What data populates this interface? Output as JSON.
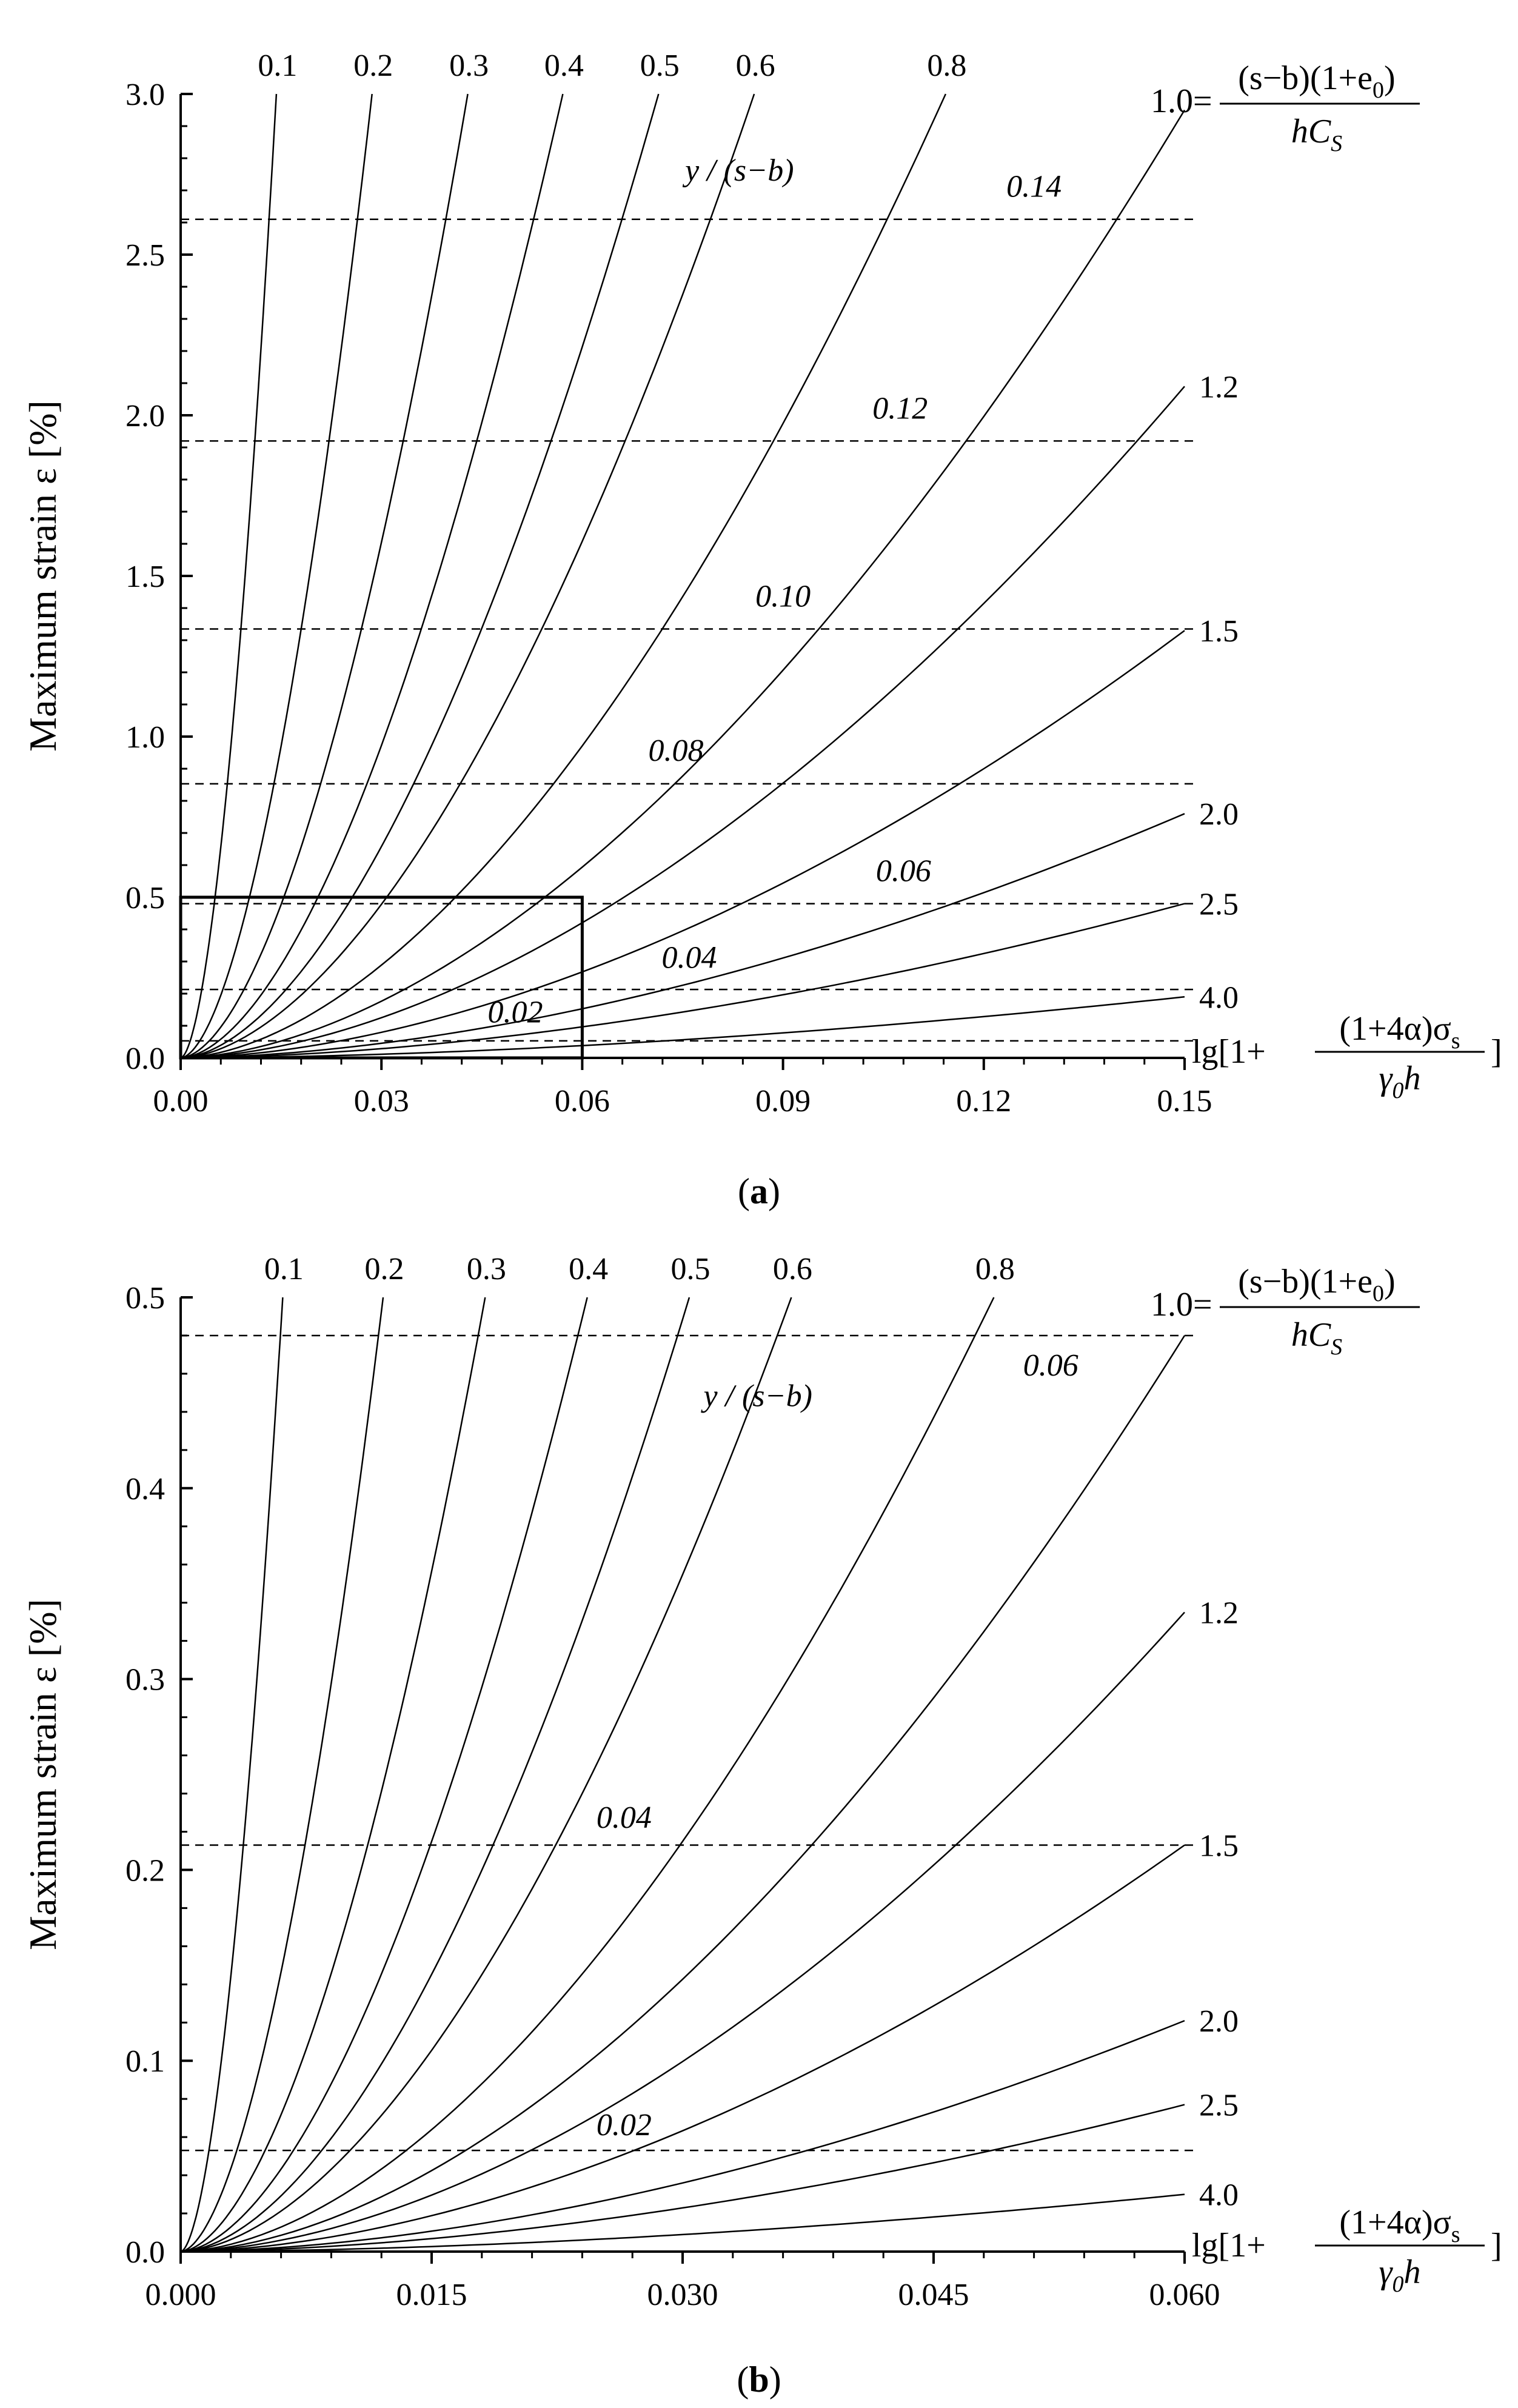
{
  "chart_data": [
    {
      "id": "a",
      "type": "line",
      "panel_label": "a",
      "xlim": [
        0,
        0.15
      ],
      "ylim": [
        0,
        3.0
      ],
      "xticks": [
        "0.00",
        "0.03",
        "0.06",
        "0.09",
        "0.12",
        "0.15"
      ],
      "xtick_values": [
        0,
        0.03,
        0.06,
        0.09,
        0.12,
        0.15
      ],
      "yticks": [
        "0.0",
        "0.5",
        "1.0",
        "1.5",
        "2.0",
        "2.5",
        "3.0"
      ],
      "ytick_values": [
        0,
        0.5,
        1.0,
        1.5,
        2.0,
        2.5,
        3.0
      ],
      "ylabel": "Maximum strain ε [%]",
      "xlabel": {
        "prefix": "lg[1+",
        "numerator": "(1+4α)σ",
        "numerator_sub": "s",
        "denominator": "γ",
        "denominator_sub": "0",
        "denominator_tail": "h",
        "suffix": "]"
      },
      "param_label": {
        "value": "1.0",
        "eq": "=",
        "numerator": "(s−b)(1+e",
        "numerator_sub": "0",
        "numerator_tail": ")",
        "denominator": "hC",
        "denominator_sub": "S"
      },
      "dashed_header": "y / (s−b)",
      "series": [
        {
          "name": "0.1",
          "top_x": 0.0143,
          "label": "0.1"
        },
        {
          "name": "0.2",
          "top_x": 0.0286,
          "label": "0.2"
        },
        {
          "name": "0.3",
          "top_x": 0.0429,
          "label": "0.3"
        },
        {
          "name": "0.4",
          "top_x": 0.0571,
          "label": "0.4"
        },
        {
          "name": "0.5",
          "top_x": 0.0714,
          "label": "0.5"
        },
        {
          "name": "0.6",
          "top_x": 0.0857,
          "label": "0.6"
        },
        {
          "name": "0.8",
          "top_x": 0.1143,
          "label": "0.8"
        },
        {
          "name": "1.0",
          "end_y": 2.95,
          "label": ""
        },
        {
          "name": "1.2",
          "end_y": 2.09,
          "label": "1.2"
        },
        {
          "name": "1.5",
          "end_y": 1.33,
          "label": "1.5"
        },
        {
          "name": "2.0",
          "end_y": 0.76,
          "label": "2.0"
        },
        {
          "name": "2.5",
          "end_y": 0.48,
          "label": "2.5"
        },
        {
          "name": "4.0",
          "end_y": 0.19,
          "label": "4.0"
        }
      ],
      "dashed_lines": [
        {
          "y": 2.61,
          "label": "0.14",
          "label_x": 0.1275,
          "label_y": 2.68
        },
        {
          "y": 1.92,
          "label": "0.12",
          "label_x": 0.1075,
          "label_y": 1.99
        },
        {
          "y": 1.335,
          "label": "0.10",
          "label_x": 0.09,
          "label_y": 1.405
        },
        {
          "y": 0.853,
          "label": "0.08",
          "label_x": 0.074,
          "label_y": 0.925
        },
        {
          "y": 0.48,
          "label": "0.06",
          "label_x": 0.108,
          "label_y": 0.55
        },
        {
          "y": 0.213,
          "label": "0.04",
          "label_x": 0.076,
          "label_y": 0.28
        },
        {
          "y": 0.053,
          "label": "0.02",
          "label_x": 0.05,
          "label_y": 0.11
        }
      ],
      "inset_box": {
        "x0": 0,
        "x1": 0.06,
        "y0": 0,
        "y1": 0.5
      }
    },
    {
      "id": "b",
      "type": "line",
      "panel_label": "b",
      "xlim": [
        0,
        0.06
      ],
      "ylim": [
        0,
        0.5
      ],
      "xticks": [
        "0.000",
        "0.015",
        "0.030",
        "0.045",
        "0.060"
      ],
      "xtick_values": [
        0,
        0.015,
        0.03,
        0.045,
        0.06
      ],
      "yticks": [
        "0.0",
        "0.1",
        "0.2",
        "0.3",
        "0.4",
        "0.5"
      ],
      "ytick_values": [
        0,
        0.1,
        0.2,
        0.3,
        0.4,
        0.5
      ],
      "ylabel": "Maximum strain ε [%]",
      "xlabel": {
        "prefix": "lg[1+",
        "numerator": "(1+4α)σ",
        "numerator_sub": "s",
        "denominator": "γ",
        "denominator_sub": "0",
        "denominator_tail": "h",
        "suffix": "]"
      },
      "param_label": {
        "value": "1.0",
        "eq": "=",
        "numerator": "(s−b)(1+e",
        "numerator_sub": "0",
        "numerator_tail": ")",
        "denominator": "hC",
        "denominator_sub": "S"
      },
      "dashed_header": "y / (s−b)",
      "series": [
        {
          "name": "0.1",
          "top_x": 0.0061,
          "label": "0.1"
        },
        {
          "name": "0.2",
          "top_x": 0.0121,
          "label": "0.2"
        },
        {
          "name": "0.3",
          "top_x": 0.0182,
          "label": "0.3"
        },
        {
          "name": "0.4",
          "top_x": 0.0243,
          "label": "0.4"
        },
        {
          "name": "0.5",
          "top_x": 0.0304,
          "label": "0.5"
        },
        {
          "name": "0.6",
          "top_x": 0.0365,
          "label": "0.6"
        },
        {
          "name": "0.8",
          "top_x": 0.0486,
          "label": "0.8"
        },
        {
          "name": "1.0",
          "end_y": 0.48,
          "label": ""
        },
        {
          "name": "1.2",
          "end_y": 0.335,
          "label": "1.2"
        },
        {
          "name": "1.5",
          "end_y": 0.213,
          "label": "1.5"
        },
        {
          "name": "2.0",
          "end_y": 0.121,
          "label": "2.0"
        },
        {
          "name": "2.5",
          "end_y": 0.077,
          "label": "2.5"
        },
        {
          "name": "4.0",
          "end_y": 0.03,
          "label": "4.0"
        }
      ],
      "dashed_lines": [
        {
          "y": 0.48,
          "label": "0.06",
          "label_x": 0.052,
          "label_y": 0.459
        },
        {
          "y": 0.213,
          "label": "0.04",
          "label_x": 0.0265,
          "label_y": 0.222
        },
        {
          "y": 0.053,
          "label": "0.02",
          "label_x": 0.0265,
          "label_y": 0.061
        }
      ]
    }
  ]
}
